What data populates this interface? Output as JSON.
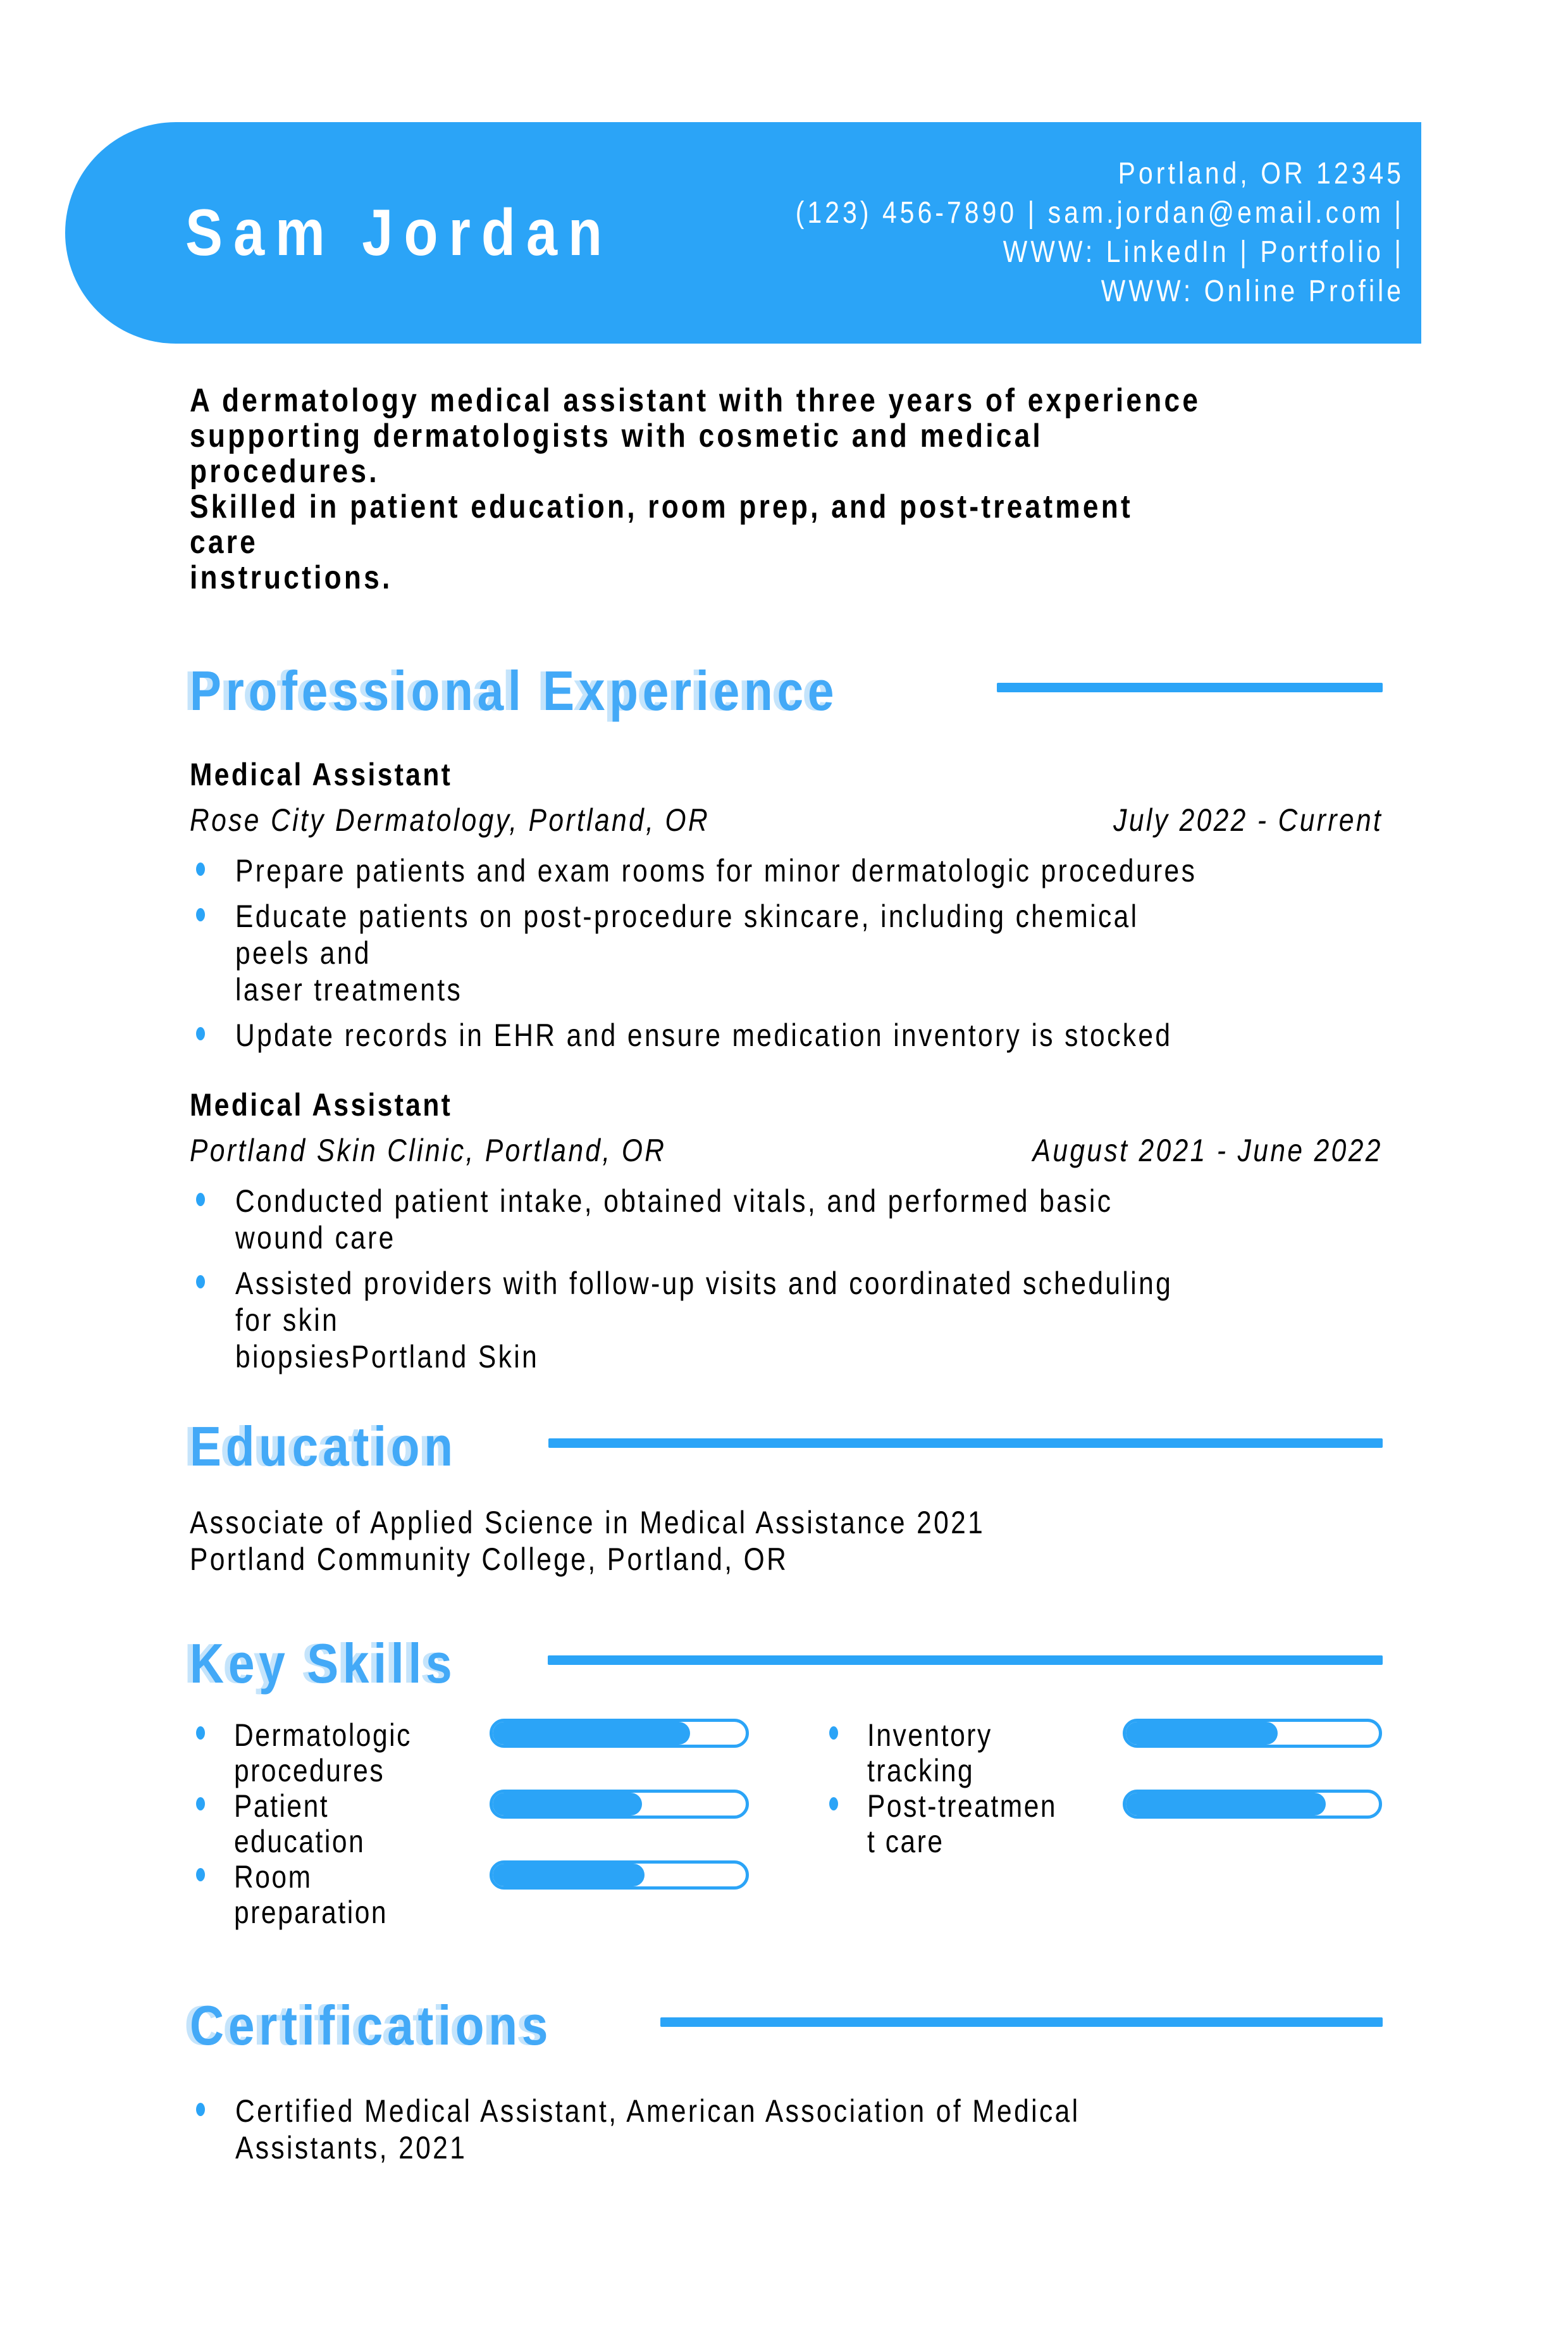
{
  "colors": {
    "accent": "#2BA4F7",
    "heading_text": "#43A9F7",
    "band_text": "#FFFFFF",
    "body_text": "#000000"
  },
  "header": {
    "name": "Sam Jordan",
    "contact_lines": [
      "Portland, OR 12345",
      "(123) 456-7890 | sam.jordan@email.com |",
      "WWW: LinkedIn | Portfolio |",
      "WWW: Online Profile"
    ]
  },
  "summary": {
    "lines": [
      "A dermatology medical assistant with three years of experience",
      "supporting dermatologists with cosmetic and medical procedures.",
      "Skilled in patient education, room prep, and post-treatment care",
      "instructions."
    ]
  },
  "experience": {
    "title": "Professional Experience",
    "jobs": [
      {
        "title": "Medical Assistant",
        "employer": "Rose City Dermatology, Portland, OR",
        "dates": "July 2022 - Current",
        "bullets": [
          [
            "Prepare patients and exam rooms for minor dermatologic procedures"
          ],
          [
            "Educate patients on post-procedure skincare, including chemical peels and",
            "laser treatments"
          ],
          [
            "Update records in EHR and ensure medication inventory is stocked"
          ]
        ]
      },
      {
        "title": "Medical Assistant",
        "employer": "Portland Skin Clinic, Portland, OR",
        "dates": "August 2021 - June 2022",
        "bullets": [
          [
            "Conducted patient intake, obtained vitals, and performed basic wound care"
          ],
          [
            "Assisted providers with follow-up visits and coordinated scheduling for skin",
            "biopsiesPortland Skin"
          ]
        ]
      }
    ]
  },
  "education": {
    "title": "Education",
    "degree": "Associate of Applied Science in Medical Assistance 2021",
    "school": "Portland Community College, Portland, OR"
  },
  "skills": {
    "title": "Key Skills",
    "items": [
      {
        "label_lines": [
          "Dermatologic",
          "procedures"
        ],
        "percent": 78
      },
      {
        "label_lines": [
          "Inventory",
          "tracking"
        ],
        "percent": 60
      },
      {
        "label_lines": [
          "Patient",
          "education"
        ],
        "percent": 59
      },
      {
        "label_lines": [
          "Post-treatmen",
          "t care"
        ],
        "percent": 79
      },
      {
        "label_lines": [
          "Room",
          "preparation"
        ],
        "percent": 60
      }
    ]
  },
  "certifications": {
    "title": "Certifications",
    "bullets": [
      [
        "Certified Medical Assistant, American Association of Medical Assistants, 2021"
      ]
    ]
  }
}
